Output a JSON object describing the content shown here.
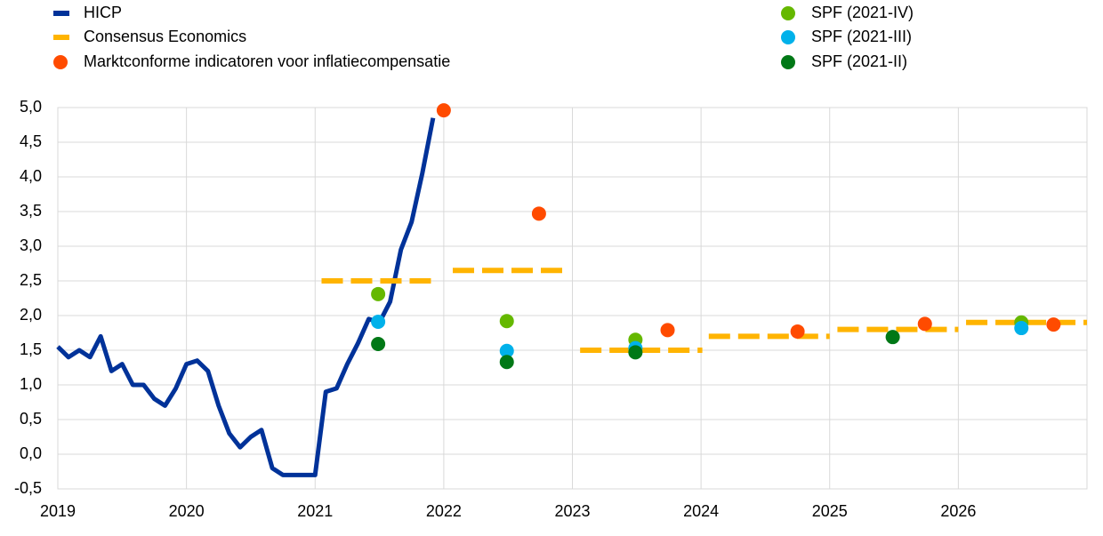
{
  "chart_data": {
    "type": "line",
    "xlim": [
      2019,
      2027
    ],
    "xticks": [
      2019,
      2020,
      2021,
      2022,
      2023,
      2024,
      2025,
      2026
    ],
    "ylim": [
      -0.5,
      5
    ],
    "yticks": [
      {
        "value": -0.5,
        "label": "-0,5"
      },
      {
        "value": 0,
        "label": "0,0"
      },
      {
        "value": 0.5,
        "label": "0,5"
      },
      {
        "value": 1,
        "label": "1,0"
      },
      {
        "value": 1.5,
        "label": "1,5"
      },
      {
        "value": 2,
        "label": "2,0"
      },
      {
        "value": 2.5,
        "label": "2,5"
      },
      {
        "value": 3,
        "label": "3,0"
      },
      {
        "value": 3.5,
        "label": "3,5"
      },
      {
        "value": 4,
        "label": "4,0"
      },
      {
        "value": 4.5,
        "label": "4,5"
      },
      {
        "value": 5,
        "label": "5,0"
      }
    ],
    "grid": true,
    "series": [
      {
        "name": "HICP",
        "style": "line",
        "color": "#003299",
        "x": [
          2019,
          2019.083,
          2019.167,
          2019.25,
          2019.333,
          2019.417,
          2019.5,
          2019.583,
          2019.667,
          2019.75,
          2019.833,
          2019.917,
          2020,
          2020.083,
          2020.167,
          2020.25,
          2020.333,
          2020.417,
          2020.5,
          2020.583,
          2020.667,
          2020.75,
          2020.833,
          2020.917,
          2021,
          2021.083,
          2021.167,
          2021.25,
          2021.333,
          2021.417,
          2021.5,
          2021.583,
          2021.667,
          2021.75,
          2021.833,
          2021.917
        ],
        "values": [
          1.55,
          1.4,
          1.5,
          1.4,
          1.7,
          1.2,
          1.3,
          1.0,
          1.0,
          0.8,
          0.7,
          0.95,
          1.3,
          1.35,
          1.2,
          0.7,
          0.3,
          0.1,
          0.25,
          0.35,
          -0.2,
          -0.3,
          -0.3,
          -0.3,
          -0.3,
          0.9,
          0.95,
          1.3,
          1.6,
          1.95,
          1.9,
          2.2,
          2.95,
          3.35,
          4.05,
          4.85
        ]
      },
      {
        "name": "Consensus Economics",
        "style": "dashed-segments",
        "color": "#ffb400",
        "x_start": [
          2021.05,
          2022.07,
          2023.06,
          2024.06,
          2025.06,
          2026.06
        ],
        "x_end": [
          2021.94,
          2022.95,
          2024.01,
          2025.0,
          2026.0,
          2027
        ],
        "values": [
          2.5,
          2.65,
          1.5,
          1.7,
          1.8,
          1.9
        ]
      },
      {
        "name": "Marktconforme indicatoren voor inflatiecompensatie",
        "style": "dots",
        "color": "#ff4b00",
        "x": [
          2022.0,
          2022.74,
          2023.74,
          2024.75,
          2025.74,
          2026.74
        ],
        "values": [
          4.96,
          3.47,
          1.79,
          1.77,
          1.88,
          1.87
        ]
      },
      {
        "name": "SPF (2021-IV)",
        "style": "dots",
        "color": "#65b800",
        "x": [
          2021.49,
          2022.49,
          2023.49,
          2026.49
        ],
        "values": [
          2.31,
          1.92,
          1.65,
          1.9
        ]
      },
      {
        "name": "SPF (2021-III)",
        "style": "dots",
        "color": "#00b1ea",
        "x": [
          2021.49,
          2022.49,
          2023.49,
          2026.49
        ],
        "values": [
          1.91,
          1.49,
          1.53,
          1.82
        ]
      },
      {
        "name": "SPF (2021-II)",
        "style": "dots",
        "color": "#007816",
        "x": [
          2021.49,
          2022.49,
          2023.49,
          2025.49
        ],
        "values": [
          1.59,
          1.33,
          1.47,
          1.69
        ]
      }
    ]
  }
}
